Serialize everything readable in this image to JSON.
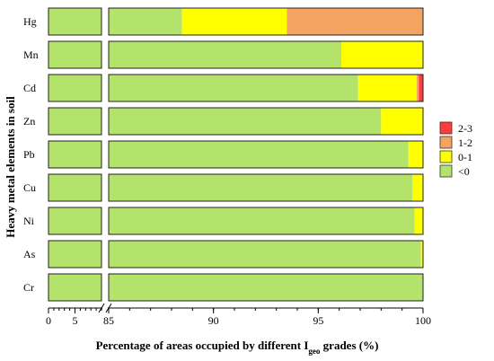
{
  "chart_data": {
    "type": "bar",
    "orientation": "horizontal",
    "stacked": true,
    "xlabel_parts": [
      "Percentage of areas occupied by different I",
      "geo",
      " grades (%)"
    ],
    "ylabel": "Heavy metal elements in soil",
    "categories": [
      "Hg",
      "Mn",
      "Cd",
      "Zn",
      "Pb",
      "Cu",
      "Ni",
      "As",
      "Cr"
    ],
    "x_axis": {
      "broken": true,
      "segment1": {
        "range": [
          0,
          10
        ],
        "ticks": [
          0,
          5
        ]
      },
      "segment2": {
        "range": [
          85,
          100
        ],
        "ticks": [
          85,
          90,
          95,
          100
        ]
      }
    },
    "grid": false,
    "legend_position": "right",
    "series": [
      {
        "name": "<0",
        "color": "#b3e36b",
        "values": [
          88.5,
          96.1,
          96.9,
          98.0,
          99.3,
          99.5,
          99.6,
          99.9,
          100.0
        ]
      },
      {
        "name": "0-1",
        "color": "#ffff00",
        "values": [
          5.0,
          3.9,
          2.8,
          2.0,
          0.7,
          0.5,
          0.4,
          0.1,
          0.0
        ]
      },
      {
        "name": "1-2",
        "color": "#f4a460",
        "values": [
          6.5,
          0.0,
          0.1,
          0.0,
          0.0,
          0.0,
          0.0,
          0.0,
          0.0
        ]
      },
      {
        "name": "2-3",
        "color": "#ff3b3b",
        "values": [
          0.0,
          0.0,
          0.2,
          0.0,
          0.0,
          0.0,
          0.0,
          0.0,
          0.0
        ]
      }
    ],
    "legend_order": [
      "2-3",
      "1-2",
      "0-1",
      "<0"
    ]
  }
}
